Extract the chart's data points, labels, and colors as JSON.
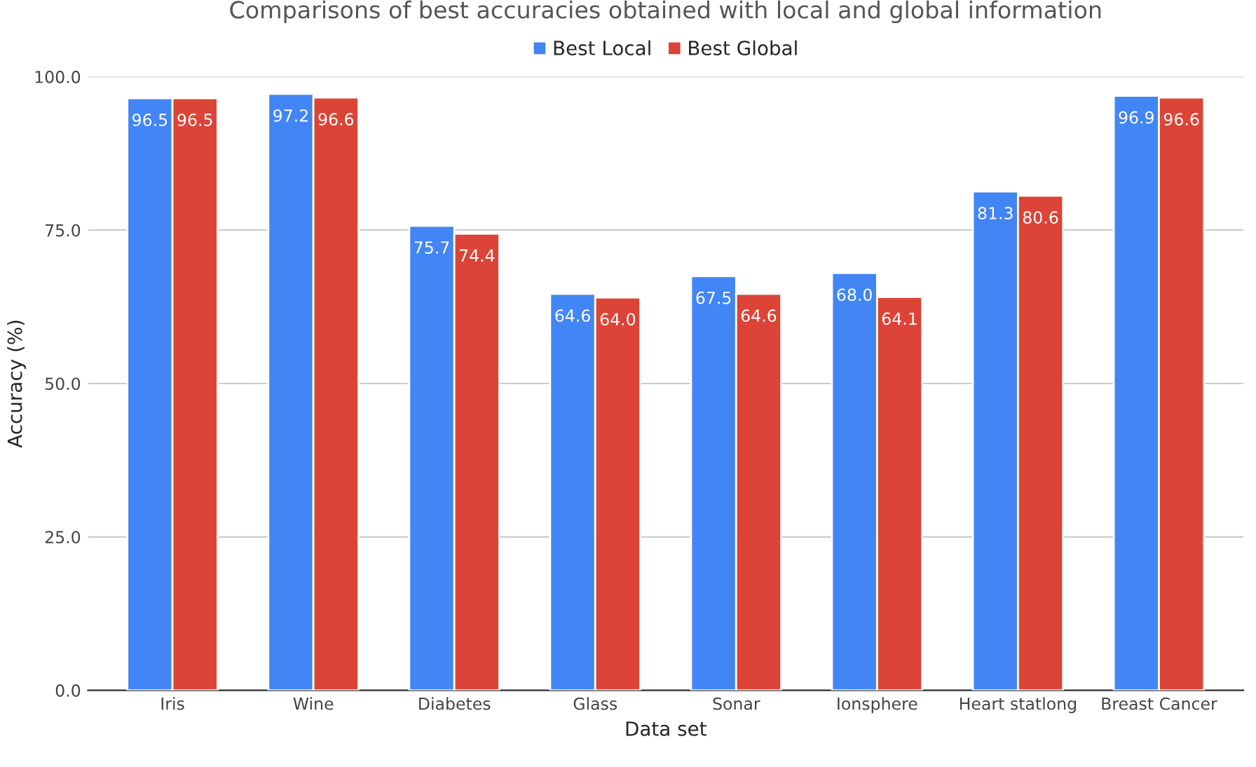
{
  "chart_data": {
    "type": "bar",
    "title": "Comparisons of best accuracies obtained with local and global information",
    "xlabel": "Data set",
    "ylabel": "Accuracy (%)",
    "categories": [
      "Iris",
      "Wine",
      "Diabetes",
      "Glass",
      "Sonar",
      "Ionsphere",
      "Heart statlong",
      "Breast Cancer"
    ],
    "series": [
      {
        "name": "Best Local",
        "color": "#4285f4",
        "values": [
          96.5,
          97.2,
          75.7,
          64.6,
          67.5,
          68.0,
          81.3,
          96.9
        ],
        "value_labels": [
          "96.5",
          "97.2",
          "75.7",
          "64.6",
          "67.5",
          "68.0",
          "81.3",
          "96.9"
        ]
      },
      {
        "name": "Best Global",
        "color": "#db4437",
        "values": [
          96.5,
          96.6,
          74.4,
          64.0,
          64.6,
          64.1,
          80.6,
          96.6
        ],
        "value_labels": [
          "96.5",
          "96.6",
          "74.4",
          "64.0",
          "64.6",
          "64.1",
          "80.6",
          "96.6"
        ]
      }
    ],
    "ylim": [
      0,
      100
    ],
    "yticks": [
      {
        "value": 0,
        "label": "0.0"
      },
      {
        "value": 25,
        "label": "25.0"
      },
      {
        "value": 50,
        "label": "50.0"
      },
      {
        "value": 75,
        "label": "75.0"
      },
      {
        "value": 100,
        "label": "100.0"
      }
    ],
    "grid": "y",
    "legend": "top"
  }
}
